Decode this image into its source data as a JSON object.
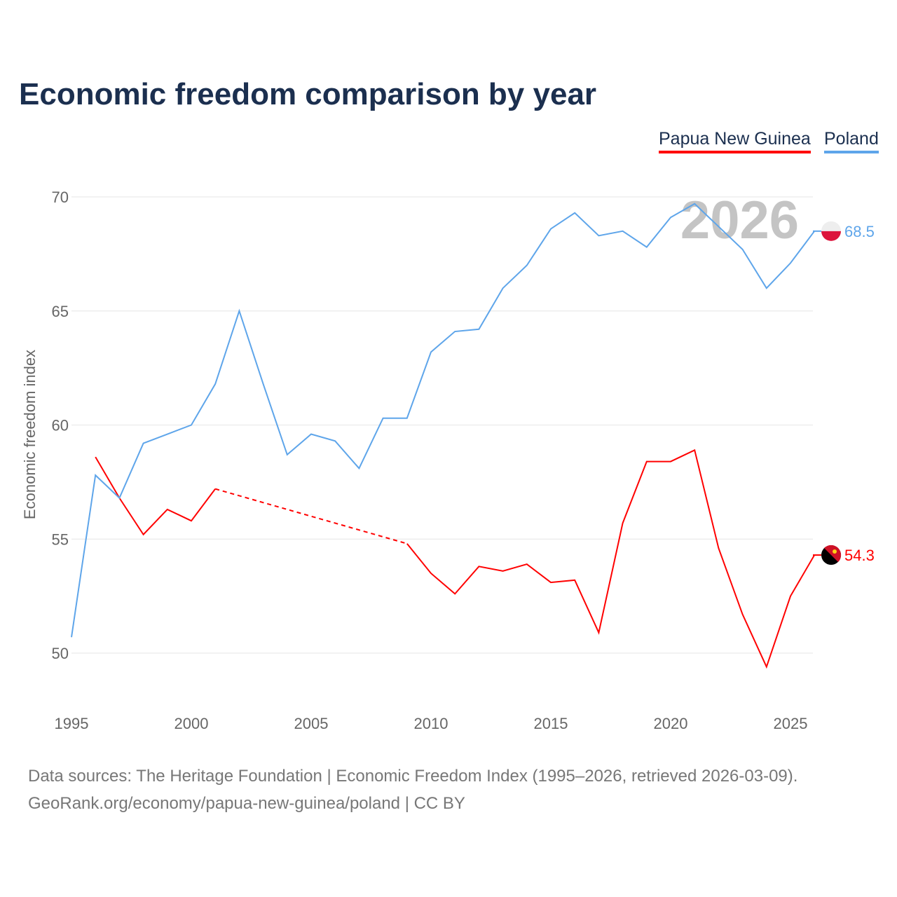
{
  "title": "Economic freedom comparison by year",
  "source_line1": "Data sources: The Heritage Foundation | Economic Freedom Index (1995–2026, retrieved 2026-03-09).",
  "source_line2": "GeoRank.org/economy/papua-new-guinea/poland | CC BY",
  "chart_data": {
    "type": "line",
    "title": "Economic freedom comparison by year",
    "xlabel": "",
    "ylabel": "Economic freedom index",
    "xlim": [
      1995,
      2026
    ],
    "ylim": [
      47.5,
      71.5
    ],
    "xticks": [
      1995,
      2000,
      2005,
      2010,
      2015,
      2020,
      2025
    ],
    "yticks": [
      50,
      55,
      60,
      65,
      70
    ],
    "grid": true,
    "legend_placement": "top-right",
    "year_watermark": "2026",
    "x": [
      1995,
      1996,
      1997,
      1998,
      1999,
      2000,
      2001,
      2002,
      2003,
      2004,
      2005,
      2006,
      2007,
      2008,
      2009,
      2010,
      2011,
      2012,
      2013,
      2014,
      2015,
      2016,
      2017,
      2018,
      2019,
      2020,
      2021,
      2022,
      2023,
      2024,
      2025,
      2026
    ],
    "series": [
      {
        "name": "Papua New Guinea",
        "color": "#ff0000",
        "end_label": "54.3",
        "values": [
          null,
          58.6,
          56.8,
          55.2,
          56.3,
          55.8,
          57.2,
          null,
          null,
          null,
          null,
          null,
          null,
          null,
          54.8,
          53.5,
          52.6,
          53.8,
          53.6,
          53.9,
          53.1,
          53.2,
          50.9,
          55.7,
          58.4,
          58.4,
          58.9,
          54.6,
          51.7,
          49.4,
          52.5,
          54.3
        ]
      },
      {
        "name": "Poland",
        "color": "#5ea5ea",
        "end_label": "68.5",
        "values": [
          50.7,
          57.8,
          56.8,
          59.2,
          59.6,
          60.0,
          61.8,
          65.0,
          61.8,
          58.7,
          59.6,
          59.3,
          58.1,
          60.3,
          60.3,
          63.2,
          64.1,
          64.2,
          66.0,
          67.0,
          68.6,
          69.3,
          68.3,
          68.5,
          67.8,
          69.1,
          69.7,
          68.7,
          67.7,
          66.0,
          67.1,
          68.5
        ]
      }
    ]
  }
}
